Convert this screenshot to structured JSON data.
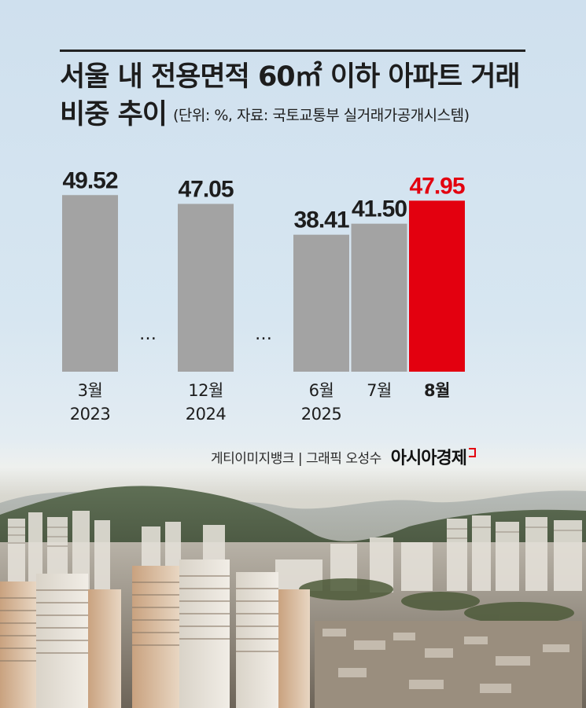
{
  "title": {
    "line1": "서울 내 전용면적 60㎡ 이하 아파트 거래",
    "line2": "비중 추이",
    "subtitle": "(단위: %, 자료: 국토교통부 실거래가공개시스템)"
  },
  "chart_data": {
    "type": "bar",
    "categories": [
      "3월\n2023",
      "…",
      "12월\n2024",
      "…",
      "6월\n2025",
      "7월",
      "8월"
    ],
    "values": [
      49.52,
      null,
      47.05,
      null,
      38.41,
      41.5,
      47.95
    ],
    "value_labels": [
      "49.52",
      "",
      "47.05",
      "",
      "38.41",
      "41.50",
      "47.95"
    ],
    "ylim": [
      0,
      52
    ],
    "highlight_index": 6,
    "colors": {
      "bar": "#a3a3a3",
      "highlight": "#e3000f",
      "label": "#1d1d1d",
      "highlight_label": "#e3000f"
    },
    "title": "",
    "xlabel": "",
    "ylabel": "",
    "grid": false
  },
  "credit": {
    "text": "게티이미지뱅크 | 그래픽 오성수",
    "brand": "아시아경제"
  }
}
